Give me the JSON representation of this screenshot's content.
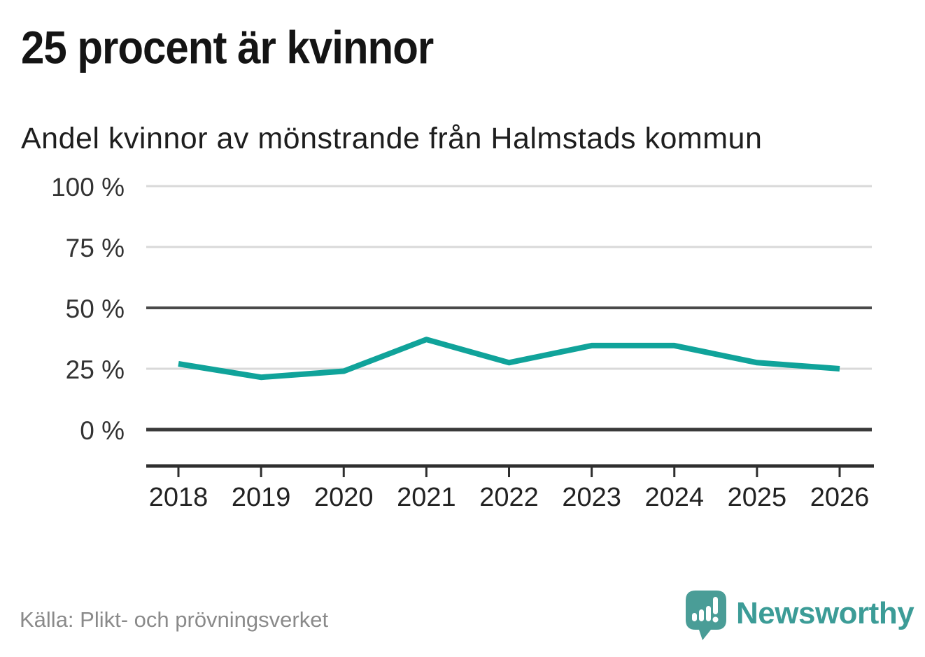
{
  "header": {
    "title": "25 procent är kvinnor",
    "subtitle": "Andel kvinnor av mönstrande från Halmstads kommun"
  },
  "chart_data": {
    "type": "line",
    "title": "Andel kvinnor av mönstrande från Halmstads kommun",
    "x": [
      2018,
      2019,
      2020,
      2021,
      2022,
      2023,
      2024,
      2025,
      2026
    ],
    "series": [
      {
        "name": "Andel kvinnor av mönstrande",
        "values": [
          27,
          21.5,
          24,
          37,
          27.5,
          34.5,
          34.5,
          27.5,
          25
        ]
      }
    ],
    "unit": "%",
    "ylim": [
      0,
      100
    ],
    "yticks": [
      0,
      25,
      50,
      75,
      100
    ],
    "ytick_labels": [
      "0 %",
      "25 %",
      "50 %",
      "75 %",
      "100 %"
    ],
    "emphasized_yticks": [
      0,
      50
    ],
    "grid": true,
    "legend": "none",
    "line_color": "#10a39a"
  },
  "footer": {
    "source": "Källa: Plikt- och prövningsverket",
    "brand": "Newsworthy"
  },
  "icons": {
    "logo": "newsworthy-speech-bubble-chart-icon"
  },
  "colors": {
    "line": "#10a39a",
    "brand_teal": "#3c9c97",
    "logo_bubble": "#4a9d97",
    "grid_light": "#d9d9d9",
    "grid_mid_dark": "#4a4a4a",
    "grid_zero": "#3a3a3a",
    "axis": "#2e2e2e",
    "tick_label": "#333333",
    "title_text": "#141414",
    "source_gray": "#8a8a8a"
  }
}
